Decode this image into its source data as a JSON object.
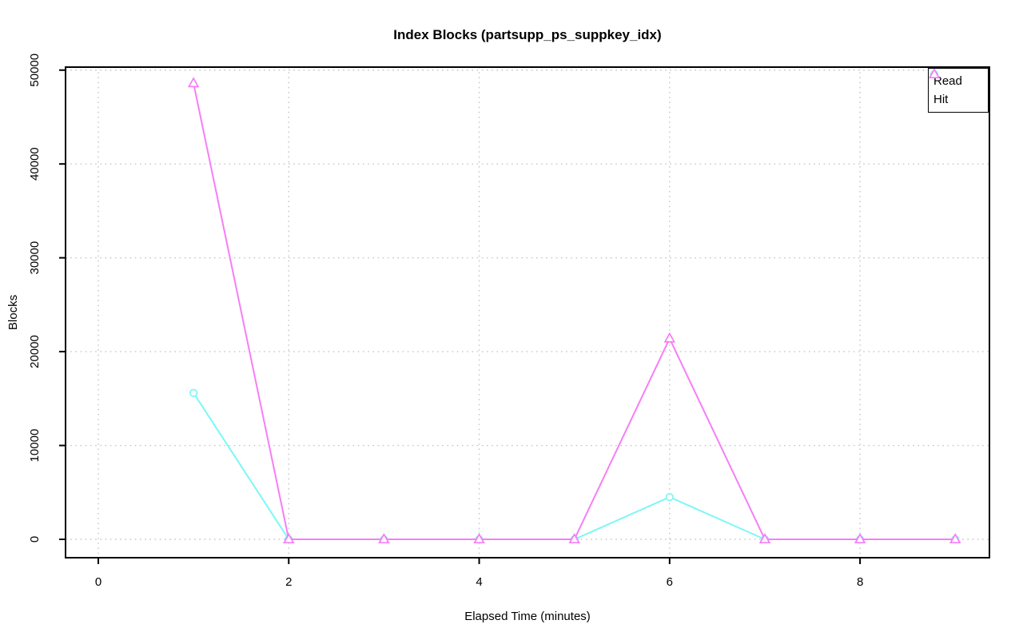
{
  "chart_data": {
    "type": "line",
    "title": "Index Blocks (partsupp_ps_suppkey_idx)",
    "xlabel": "Elapsed Time (minutes)",
    "ylabel": "Blocks",
    "x": [
      1,
      2,
      3,
      4,
      5,
      6,
      7,
      8,
      9
    ],
    "series": [
      {
        "name": "Read",
        "marker": "circle",
        "color": "#7df7f7",
        "values": [
          15600,
          0,
          0,
          0,
          0,
          4500,
          0,
          0,
          0
        ]
      },
      {
        "name": "Hit",
        "marker": "triangle",
        "color": "#f77df7",
        "values": [
          48600,
          0,
          0,
          0,
          0,
          21400,
          0,
          0,
          0
        ]
      }
    ],
    "x_ticks": [
      0,
      2,
      4,
      6,
      8
    ],
    "y_ticks": [
      0,
      10000,
      20000,
      30000,
      40000,
      50000
    ],
    "xlim": [
      -0.34,
      9.36
    ],
    "ylim": [
      -1960,
      50340
    ],
    "grid": true,
    "legend_position": "top-right",
    "colors": {
      "axis": "#000000",
      "grid": "#c6c6c6",
      "background": "#ffffff"
    }
  }
}
